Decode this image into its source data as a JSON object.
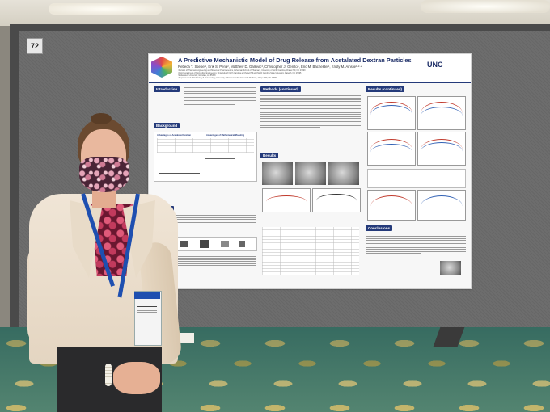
{
  "board": {
    "number_tag": "72"
  },
  "poster": {
    "title": "A Predictive Mechanistic Model of Drug Release from Acetalated Dextran Particles",
    "authors": "Rebeca T. Stiepel¹, Erik S. Pena², Matthew D. Gallovic³, Christopher J. Genito⁴, Eric M. Bachelder¹, Kristy M. Ainslie¹·²·⁴",
    "affiliations": [
      "¹Division of Pharmacoengineering and Molecular Pharmaceutics, Eshelman School of Pharmacy, University of North Carolina, Chapel Hill, NC 27599",
      "²Joint Department of Biomedical Engineering, University of North Carolina at Chapel Hill and North Carolina State University, Raleigh, NC 27695",
      "³Midwestern University, Glendale, AZ 85308",
      "⁴Department of Microbiology & Immunology, University of North Carolina School of Medicine, Chapel Hill, NC 27599",
      ""
    ],
    "logo_right": "UNC",
    "sections": {
      "introduction": "Introduction",
      "background": "Background",
      "methods": "Methods",
      "methods_continued": "Methods (continued)",
      "results": "Results",
      "results_continued": "Results (continued)",
      "conclusions": "Conclusions"
    },
    "background_table": {
      "col1": "Advantages of Acetalated Dextran",
      "col2": "Advantages of Mathematical Modeling"
    }
  }
}
